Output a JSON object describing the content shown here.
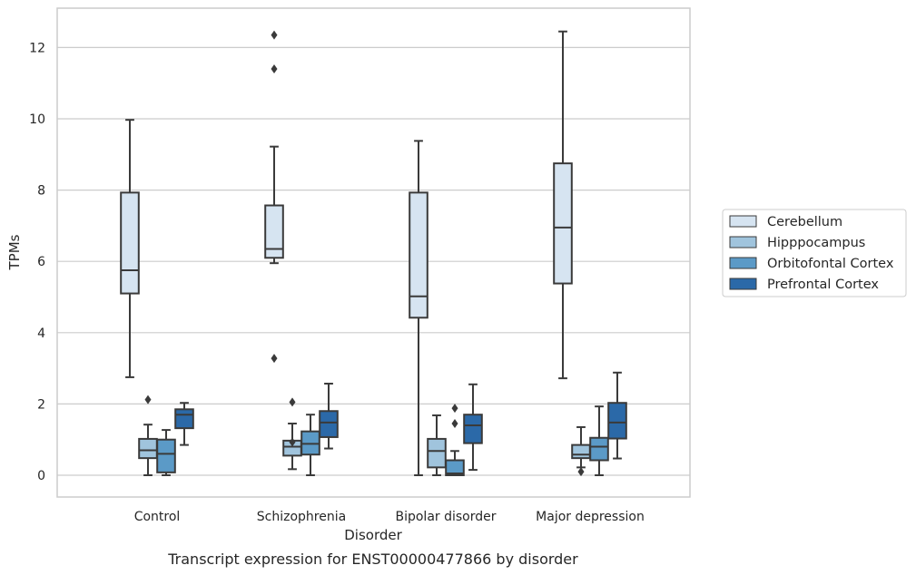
{
  "chart_data": {
    "type": "box",
    "caption": "Transcript expression for ENST00000477866 by disorder",
    "xlabel": "Disorder",
    "ylabel": "TPMs",
    "ylim": [
      -0.6,
      13.1
    ],
    "yticks": [
      0,
      2,
      4,
      6,
      8,
      10,
      12
    ],
    "grid": "horizontal",
    "legend_position": "right",
    "categories": [
      "Control",
      "Schizophrenia",
      "Bipolar disorder",
      "Major depression"
    ],
    "series": [
      {
        "name": "Cerebellum",
        "color": "#d6e4f1",
        "boxes": [
          {
            "whisker_low": 2.75,
            "q1": 5.1,
            "median": 5.75,
            "q3": 7.93,
            "whisker_high": 9.97,
            "outliers": []
          },
          {
            "whisker_low": 5.95,
            "q1": 6.1,
            "median": 6.35,
            "q3": 7.57,
            "whisker_high": 9.22,
            "outliers": [
              3.28,
              11.4,
              12.35
            ]
          },
          {
            "whisker_low": 0.0,
            "q1": 4.42,
            "median": 5.02,
            "q3": 7.93,
            "whisker_high": 9.38,
            "outliers": []
          },
          {
            "whisker_low": 2.72,
            "q1": 5.38,
            "median": 6.95,
            "q3": 8.75,
            "whisker_high": 12.45,
            "outliers": []
          }
        ]
      },
      {
        "name": "Hipppocampus",
        "color": "#a0c4dd",
        "boxes": [
          {
            "whisker_low": 0.0,
            "q1": 0.48,
            "median": 0.7,
            "q3": 1.02,
            "whisker_high": 1.42,
            "outliers": [
              2.12
            ]
          },
          {
            "whisker_low": 0.17,
            "q1": 0.55,
            "median": 0.8,
            "q3": 0.97,
            "whisker_high": 1.45,
            "outliers": [
              0.93,
              2.05
            ]
          },
          {
            "whisker_low": 0.0,
            "q1": 0.22,
            "median": 0.68,
            "q3": 1.02,
            "whisker_high": 1.68,
            "outliers": []
          },
          {
            "whisker_low": 0.22,
            "q1": 0.48,
            "median": 0.58,
            "q3": 0.85,
            "whisker_high": 1.35,
            "outliers": [
              0.1
            ]
          }
        ]
      },
      {
        "name": "Orbitofontal Cortex",
        "color": "#5b9ac7",
        "boxes": [
          {
            "whisker_low": 0.0,
            "q1": 0.08,
            "median": 0.6,
            "q3": 1.0,
            "whisker_high": 1.27,
            "outliers": []
          },
          {
            "whisker_low": 0.0,
            "q1": 0.58,
            "median": 0.88,
            "q3": 1.23,
            "whisker_high": 1.7,
            "outliers": []
          },
          {
            "whisker_low": 0.0,
            "q1": 0.0,
            "median": 0.05,
            "q3": 0.42,
            "whisker_high": 0.68,
            "outliers": [
              1.45,
              1.88
            ]
          },
          {
            "whisker_low": 0.0,
            "q1": 0.42,
            "median": 0.8,
            "q3": 1.05,
            "whisker_high": 1.93,
            "outliers": []
          }
        ]
      },
      {
        "name": "Prefrontal Cortex",
        "color": "#2b69a8",
        "boxes": [
          {
            "whisker_low": 0.85,
            "q1": 1.32,
            "median": 1.7,
            "q3": 1.85,
            "whisker_high": 2.03,
            "outliers": []
          },
          {
            "whisker_low": 0.75,
            "q1": 1.07,
            "median": 1.48,
            "q3": 1.8,
            "whisker_high": 2.57,
            "outliers": []
          },
          {
            "whisker_low": 0.15,
            "q1": 0.9,
            "median": 1.4,
            "q3": 1.7,
            "whisker_high": 2.55,
            "outliers": []
          },
          {
            "whisker_low": 0.47,
            "q1": 1.03,
            "median": 1.48,
            "q3": 2.03,
            "whisker_high": 2.88,
            "outliers": []
          }
        ]
      }
    ]
  }
}
